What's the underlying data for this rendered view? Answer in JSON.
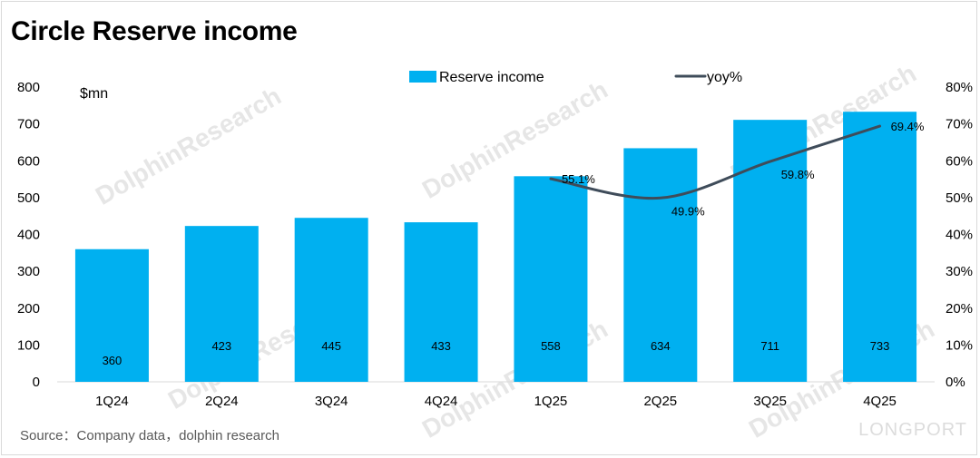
{
  "title": "Circle Reserve income",
  "source": "Source：Company data，dolphin research",
  "watermark": {
    "text": "DolphinResearch",
    "brand": "LONGPORT"
  },
  "colors": {
    "bar": "#00b0f0",
    "line": "#3f4c5a"
  },
  "chart_data": {
    "type": "bar",
    "categories": [
      "1Q24",
      "2Q24",
      "3Q24",
      "4Q24",
      "1Q25",
      "2Q25",
      "3Q25",
      "4Q25"
    ],
    "series": [
      {
        "name": "Reserve income",
        "type": "bar",
        "axis": "left",
        "values": [
          360,
          423,
          445,
          433,
          558,
          634,
          711,
          733
        ]
      },
      {
        "name": "yoy%",
        "type": "line",
        "axis": "right",
        "values": [
          null,
          null,
          null,
          null,
          55.1,
          49.9,
          59.8,
          69.4
        ]
      }
    ],
    "y_left": {
      "label": "$mn",
      "min": 0,
      "max": 800,
      "ticks": [
        0,
        100,
        200,
        300,
        400,
        500,
        600,
        700,
        800
      ]
    },
    "y_right": {
      "min": 0,
      "max": 80,
      "ticks": [
        "0%",
        "10%",
        "20%",
        "30%",
        "40%",
        "50%",
        "60%",
        "70%",
        "80%"
      ]
    },
    "bar_labels": [
      "360",
      "423",
      "445",
      "433",
      "558",
      "634",
      "711",
      "733"
    ],
    "line_labels": [
      "",
      "",
      "",
      "",
      "55.1%",
      "49.9%",
      "59.8%",
      "69.4%"
    ],
    "legend": {
      "position": "top-center",
      "items": [
        "Reserve income",
        "yoy%"
      ]
    },
    "grid": false
  }
}
